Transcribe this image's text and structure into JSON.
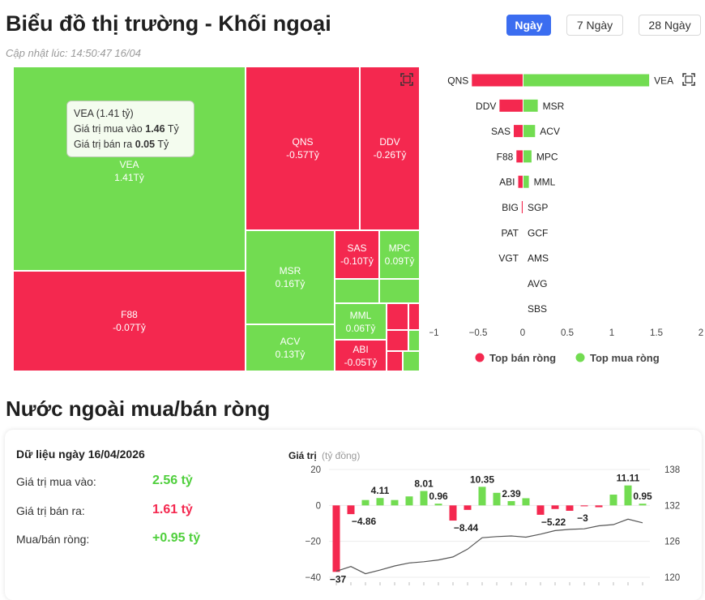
{
  "header": {
    "title": "Biểu đồ thị trường - Khối ngoại",
    "updated": "Cập nhật lúc: 14:50:47 16/04",
    "tabs": [
      {
        "label": "Ngày",
        "active": true
      },
      {
        "label": "7 Ngày",
        "active": false
      },
      {
        "label": "28 Ngày",
        "active": false
      }
    ]
  },
  "icons": {
    "expand": "expand-icon"
  },
  "colors": {
    "buy": "#72dc51",
    "sell": "#f4284f",
    "accent": "#3b6df0"
  },
  "treemap": {
    "tiles": [
      {
        "code": "VEA",
        "value": "1.41Tỷ",
        "dir": "up"
      },
      {
        "code": "F88",
        "value": "-0.07Tỷ",
        "dir": "down"
      },
      {
        "code": "QNS",
        "value": "-0.57Tỷ",
        "dir": "down"
      },
      {
        "code": "DDV",
        "value": "-0.26Tỷ",
        "dir": "down"
      },
      {
        "code": "MSR",
        "value": "0.16Tỷ",
        "dir": "up"
      },
      {
        "code": "SAS",
        "value": "-0.10Tỷ",
        "dir": "down"
      },
      {
        "code": "MPC",
        "value": "0.09Tỷ",
        "dir": "up"
      },
      {
        "code": "ACV",
        "value": "0.13Tỷ",
        "dir": "up"
      },
      {
        "code": "MML",
        "value": "0.06Tỷ",
        "dir": "up"
      },
      {
        "code": "ABI",
        "value": "-0.05Tỷ",
        "dir": "down"
      },
      {
        "code": "",
        "value": "",
        "dir": "down"
      },
      {
        "code": "",
        "value": "",
        "dir": "down"
      },
      {
        "code": "",
        "value": "",
        "dir": "down"
      },
      {
        "code": "",
        "value": "",
        "dir": "up"
      },
      {
        "code": "",
        "value": "",
        "dir": "down"
      },
      {
        "code": "",
        "value": "",
        "dir": "up"
      },
      {
        "code": "",
        "value": "",
        "dir": "up"
      },
      {
        "code": "",
        "value": "",
        "dir": "up"
      }
    ],
    "tooltip": {
      "title": "VEA (1.41 tỷ)",
      "buy_label": "Giá trị mua vào",
      "buy_value": "1.46",
      "sell_label": "Giá trị bán ra",
      "sell_value": "0.05",
      "unit": "Tỷ"
    }
  },
  "chart_data": [
    {
      "type": "bar",
      "orientation": "horizontal",
      "sell_codes": [
        "QNS",
        "DDV",
        "SAS",
        "F88",
        "ABI",
        "BIG",
        "PAT",
        "VGT",
        "",
        ""
      ],
      "sell_values": [
        -0.57,
        -0.26,
        -0.1,
        -0.07,
        -0.05,
        -0.01,
        0,
        0,
        0,
        0
      ],
      "buy_codes": [
        "VEA",
        "MSR",
        "ACV",
        "MPC",
        "MML",
        "SGP",
        "GCF",
        "AMS",
        "AVG",
        "SBS"
      ],
      "buy_values": [
        1.41,
        0.16,
        0.13,
        0.09,
        0.06,
        0,
        0,
        0,
        0,
        0
      ],
      "xticks": [
        "−1",
        "−0.5",
        "0",
        "0.5",
        "1",
        "1.5",
        "2"
      ],
      "xlim": [
        -1,
        2
      ],
      "legend": [
        "Top bán ròng",
        "Top mua ròng"
      ],
      "legend_position": "bottom"
    },
    {
      "type": "bar",
      "ylabel": "Giá trị",
      "ylabel_unit": "(tỷ đồng)",
      "ylim": [
        -40,
        20
      ],
      "yticks": [
        "20",
        "0",
        "−20",
        "−40"
      ],
      "y2lim": [
        120,
        138
      ],
      "y2ticks": [
        "138",
        "132",
        "126",
        "120"
      ],
      "values": [
        -37,
        -4.86,
        3,
        4.11,
        3,
        5,
        8.01,
        0.96,
        -8.44,
        -2.5,
        10.35,
        7,
        2.39,
        4,
        -5.22,
        -2,
        -3,
        -0.5,
        -1,
        6,
        11.11,
        0.95
      ],
      "data_labels": [
        "−37",
        "−4.86",
        "",
        "4.11",
        "",
        "",
        "8.01",
        "0.96",
        "−8.44",
        "",
        "10.35",
        "",
        "2.39",
        "",
        "−5.22",
        "",
        "−3",
        "",
        "",
        "",
        "11.11",
        "0.95"
      ],
      "line": [
        121,
        121.8,
        120.6,
        121.2,
        121.9,
        122.4,
        122.6,
        122.9,
        123.4,
        124.7,
        126.6,
        126.8,
        126.9,
        126.7,
        127.2,
        127.8,
        128,
        128.1,
        128.6,
        128.8,
        129.7,
        129.1
      ]
    }
  ],
  "section2": {
    "title": "Nước ngoài mua/bán ròng",
    "date": "Dữ liệu ngày 16/04/2026",
    "rows": [
      {
        "label": "Giá trị mua vào:",
        "value": "2.56 tỷ",
        "color": "#4fcf3c"
      },
      {
        "label": "Giá trị bán ra:",
        "value": "1.61 tỷ",
        "color": "#f4284f"
      },
      {
        "label": "Mua/bán ròng:",
        "value": "+0.95 tỷ",
        "color": "#4fcf3c"
      }
    ]
  }
}
